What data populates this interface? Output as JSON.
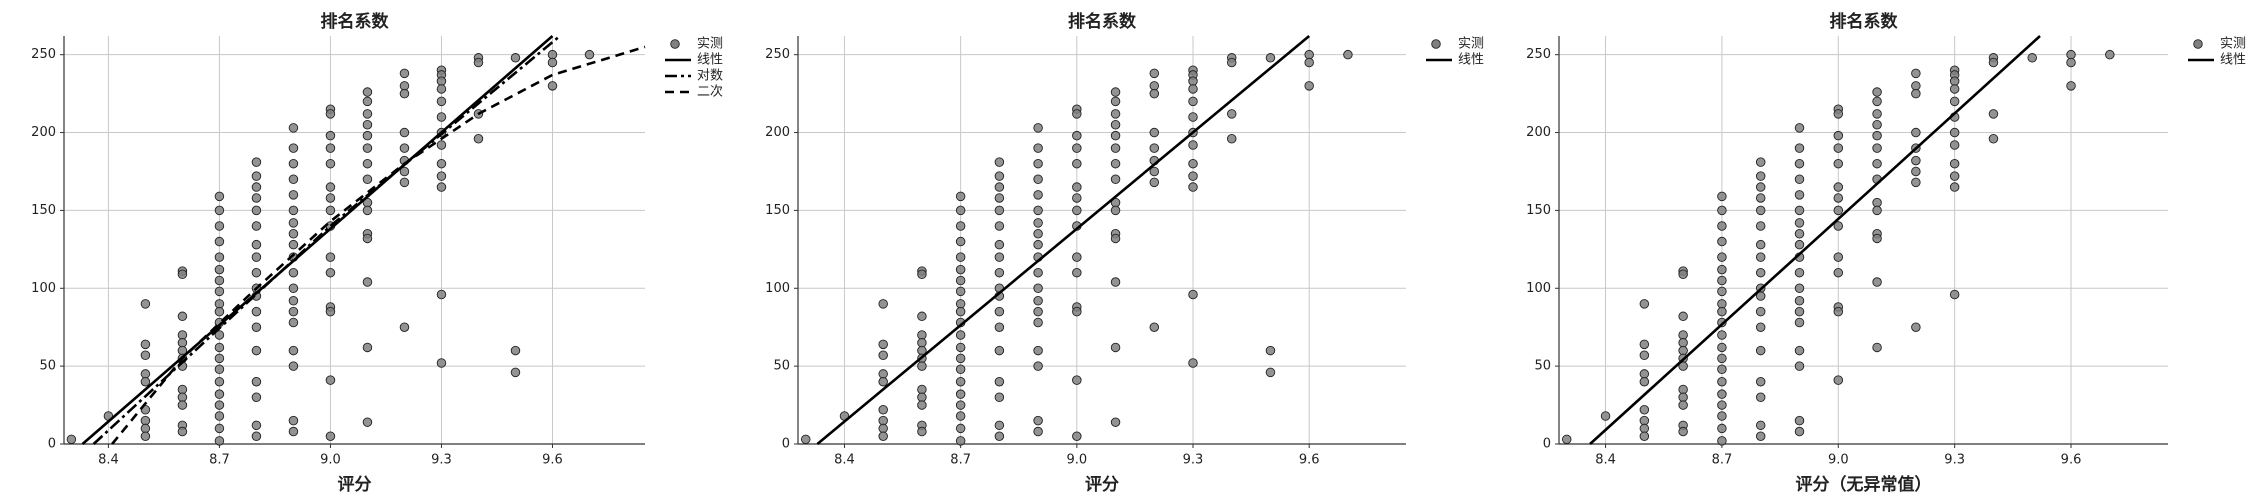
{
  "chart_data": [
    {
      "type": "scatter",
      "title": "排名系数",
      "x_label": "评分",
      "grid": true,
      "legend": "outside-right",
      "xlim": [
        8.28,
        9.85
      ],
      "xticks": [
        8.4,
        8.7,
        {
          "value": 9,
          "label": "9.0"
        },
        9.3,
        9.6
      ],
      "ylim": [
        0,
        262
      ],
      "yticks": [
        0,
        50,
        100,
        150,
        200,
        250
      ],
      "series": [
        {
          "name": "实测",
          "type": "scatter",
          "color": "#808080",
          "x": [
            8.3,
            8.4,
            8.5,
            8.5,
            8.5,
            8.5,
            8.5,
            8.5,
            8.5,
            8.5,
            8.5,
            8.6,
            8.6,
            8.6,
            8.6,
            8.6,
            8.6,
            8.6,
            8.6,
            8.6,
            8.6,
            8.6,
            8.6,
            8.6,
            8.7,
            8.7,
            8.7,
            8.7,
            8.7,
            8.7,
            8.7,
            8.7,
            8.7,
            8.7,
            8.7,
            8.7,
            8.7,
            8.7,
            8.7,
            8.7,
            8.7,
            8.7,
            8.7,
            8.7,
            8.7,
            8.8,
            8.8,
            8.8,
            8.8,
            8.8,
            8.8,
            8.8,
            8.8,
            8.8,
            8.8,
            8.8,
            8.8,
            8.8,
            8.8,
            8.8,
            8.8,
            8.8,
            8.8,
            8.9,
            8.9,
            8.9,
            8.9,
            8.9,
            8.9,
            8.9,
            8.9,
            8.9,
            8.9,
            8.9,
            8.9,
            8.9,
            8.9,
            8.9,
            8.9,
            8.9,
            8.9,
            8.9,
            9,
            9,
            9,
            9,
            9,
            9,
            9,
            9,
            9,
            9,
            9,
            9,
            9,
            9,
            9,
            9.1,
            9.1,
            9.1,
            9.1,
            9.1,
            9.1,
            9.1,
            9.1,
            9.1,
            9.1,
            9.1,
            9.1,
            9.1,
            9.1,
            9.1,
            9.2,
            9.2,
            9.2,
            9.2,
            9.2,
            9.2,
            9.2,
            9.2,
            9.2,
            9.3,
            9.3,
            9.3,
            9.3,
            9.3,
            9.3,
            9.3,
            9.3,
            9.3,
            9.3,
            9.3,
            9.3,
            9.3,
            9.4,
            9.4,
            9.4,
            9.4,
            9.5,
            9.5,
            9.5,
            9.6,
            9.6,
            9.6,
            9.7
          ],
          "values": [
            3,
            18,
            90,
            64,
            57,
            45,
            40,
            22,
            15,
            10,
            5,
            111,
            109,
            82,
            70,
            65,
            60,
            55,
            50,
            35,
            30,
            25,
            12,
            8,
            159,
            150,
            140,
            130,
            120,
            112,
            105,
            98,
            90,
            85,
            78,
            70,
            62,
            55,
            48,
            40,
            32,
            25,
            18,
            10,
            2,
            181,
            172,
            165,
            158,
            150,
            140,
            128,
            120,
            110,
            100,
            95,
            85,
            75,
            60,
            40,
            30,
            12,
            5,
            203,
            190,
            180,
            170,
            160,
            150,
            142,
            135,
            128,
            120,
            110,
            100,
            92,
            85,
            78,
            60,
            50,
            15,
            8,
            215,
            212,
            198,
            190,
            180,
            165,
            158,
            150,
            140,
            120,
            110,
            88,
            85,
            41,
            5,
            226,
            220,
            212,
            205,
            198,
            190,
            180,
            170,
            155,
            150,
            135,
            132,
            104,
            62,
            14,
            238,
            230,
            225,
            200,
            190,
            182,
            175,
            168,
            75,
            240,
            237,
            233,
            228,
            220,
            210,
            200,
            192,
            180,
            172,
            165,
            96,
            52,
            248,
            245,
            212,
            196,
            248,
            60,
            46,
            250,
            245,
            230,
            250
          ]
        },
        {
          "name": "线性",
          "type": "line",
          "style": "solid",
          "color": "#000000",
          "x": [
            8.33,
            9.6
          ],
          "values": [
            0,
            262
          ]
        },
        {
          "name": "对数",
          "type": "line",
          "style": "dashdot",
          "color": "#000000",
          "x": [
            8.36,
            9.0,
            9.62
          ],
          "values": [
            0,
            140,
            262
          ]
        },
        {
          "name": "二次",
          "type": "line",
          "style": "dashed",
          "color": "#000000",
          "x": [
            8.41,
            8.6,
            8.8,
            9.0,
            9.2,
            9.4,
            9.6,
            9.85
          ],
          "values": [
            0,
            55,
            100,
            143,
            180,
            212,
            237,
            255
          ]
        }
      ]
    },
    {
      "type": "scatter",
      "title": "排名系数",
      "x_label": "评分",
      "grid": true,
      "legend": "outside-right",
      "xlim": [
        8.28,
        9.85
      ],
      "xticks": [
        8.4,
        8.7,
        {
          "value": 9,
          "label": "9.0"
        },
        9.3,
        9.6
      ],
      "ylim": [
        0,
        262
      ],
      "yticks": [
        0,
        50,
        100,
        150,
        200,
        250
      ],
      "series": [
        {
          "name": "实测",
          "type": "scatter",
          "color": "#808080",
          "x": [
            8.3,
            8.4,
            8.5,
            8.5,
            8.5,
            8.5,
            8.5,
            8.5,
            8.5,
            8.5,
            8.5,
            8.6,
            8.6,
            8.6,
            8.6,
            8.6,
            8.6,
            8.6,
            8.6,
            8.6,
            8.6,
            8.6,
            8.6,
            8.6,
            8.7,
            8.7,
            8.7,
            8.7,
            8.7,
            8.7,
            8.7,
            8.7,
            8.7,
            8.7,
            8.7,
            8.7,
            8.7,
            8.7,
            8.7,
            8.7,
            8.7,
            8.7,
            8.7,
            8.7,
            8.7,
            8.8,
            8.8,
            8.8,
            8.8,
            8.8,
            8.8,
            8.8,
            8.8,
            8.8,
            8.8,
            8.8,
            8.8,
            8.8,
            8.8,
            8.8,
            8.8,
            8.8,
            8.8,
            8.9,
            8.9,
            8.9,
            8.9,
            8.9,
            8.9,
            8.9,
            8.9,
            8.9,
            8.9,
            8.9,
            8.9,
            8.9,
            8.9,
            8.9,
            8.9,
            8.9,
            8.9,
            8.9,
            9,
            9,
            9,
            9,
            9,
            9,
            9,
            9,
            9,
            9,
            9,
            9,
            9,
            9,
            9,
            9.1,
            9.1,
            9.1,
            9.1,
            9.1,
            9.1,
            9.1,
            9.1,
            9.1,
            9.1,
            9.1,
            9.1,
            9.1,
            9.1,
            9.1,
            9.2,
            9.2,
            9.2,
            9.2,
            9.2,
            9.2,
            9.2,
            9.2,
            9.2,
            9.3,
            9.3,
            9.3,
            9.3,
            9.3,
            9.3,
            9.3,
            9.3,
            9.3,
            9.3,
            9.3,
            9.3,
            9.3,
            9.4,
            9.4,
            9.4,
            9.4,
            9.5,
            9.5,
            9.5,
            9.6,
            9.6,
            9.6,
            9.7
          ],
          "values": [
            3,
            18,
            90,
            64,
            57,
            45,
            40,
            22,
            15,
            10,
            5,
            111,
            109,
            82,
            70,
            65,
            60,
            55,
            50,
            35,
            30,
            25,
            12,
            8,
            159,
            150,
            140,
            130,
            120,
            112,
            105,
            98,
            90,
            85,
            78,
            70,
            62,
            55,
            48,
            40,
            32,
            25,
            18,
            10,
            2,
            181,
            172,
            165,
            158,
            150,
            140,
            128,
            120,
            110,
            100,
            95,
            85,
            75,
            60,
            40,
            30,
            12,
            5,
            203,
            190,
            180,
            170,
            160,
            150,
            142,
            135,
            128,
            120,
            110,
            100,
            92,
            85,
            78,
            60,
            50,
            15,
            8,
            215,
            212,
            198,
            190,
            180,
            165,
            158,
            150,
            140,
            120,
            110,
            88,
            85,
            41,
            5,
            226,
            220,
            212,
            205,
            198,
            190,
            180,
            170,
            155,
            150,
            135,
            132,
            104,
            62,
            14,
            238,
            230,
            225,
            200,
            190,
            182,
            175,
            168,
            75,
            240,
            237,
            233,
            228,
            220,
            210,
            200,
            192,
            180,
            172,
            165,
            96,
            52,
            248,
            245,
            212,
            196,
            248,
            60,
            46,
            250,
            245,
            230,
            250
          ]
        },
        {
          "name": "线性",
          "type": "line",
          "style": "solid",
          "color": "#000000",
          "x": [
            8.33,
            9.6
          ],
          "values": [
            0,
            262
          ]
        }
      ]
    },
    {
      "type": "scatter",
      "title": "排名系数",
      "x_label": "评分（无异常值）",
      "grid": true,
      "legend": "outside-right",
      "xlim": [
        8.28,
        9.85
      ],
      "xticks": [
        8.4,
        8.7,
        {
          "value": 9,
          "label": "9.0"
        },
        9.3,
        9.6
      ],
      "ylim": [
        0,
        262
      ],
      "yticks": [
        0,
        50,
        100,
        150,
        200,
        250
      ],
      "series": [
        {
          "name": "实测",
          "type": "scatter",
          "color": "#808080",
          "x": [
            8.3,
            8.4,
            8.5,
            8.5,
            8.5,
            8.5,
            8.5,
            8.5,
            8.5,
            8.5,
            8.5,
            8.6,
            8.6,
            8.6,
            8.6,
            8.6,
            8.6,
            8.6,
            8.6,
            8.6,
            8.6,
            8.6,
            8.6,
            8.6,
            8.7,
            8.7,
            8.7,
            8.7,
            8.7,
            8.7,
            8.7,
            8.7,
            8.7,
            8.7,
            8.7,
            8.7,
            8.7,
            8.7,
            8.7,
            8.7,
            8.7,
            8.7,
            8.7,
            8.7,
            8.7,
            8.8,
            8.8,
            8.8,
            8.8,
            8.8,
            8.8,
            8.8,
            8.8,
            8.8,
            8.8,
            8.8,
            8.8,
            8.8,
            8.8,
            8.8,
            8.8,
            8.8,
            8.8,
            8.9,
            8.9,
            8.9,
            8.9,
            8.9,
            8.9,
            8.9,
            8.9,
            8.9,
            8.9,
            8.9,
            8.9,
            8.9,
            8.9,
            8.9,
            8.9,
            8.9,
            8.9,
            8.9,
            9,
            9,
            9,
            9,
            9,
            9,
            9,
            9,
            9,
            9,
            9,
            9,
            9,
            9,
            9.1,
            9.1,
            9.1,
            9.1,
            9.1,
            9.1,
            9.1,
            9.1,
            9.1,
            9.1,
            9.1,
            9.1,
            9.1,
            9.1,
            9.2,
            9.2,
            9.2,
            9.2,
            9.2,
            9.2,
            9.2,
            9.2,
            9.2,
            9.3,
            9.3,
            9.3,
            9.3,
            9.3,
            9.3,
            9.3,
            9.3,
            9.3,
            9.3,
            9.3,
            9.3,
            9.4,
            9.4,
            9.4,
            9.4,
            9.5,
            9.6,
            9.6,
            9.6,
            9.7
          ],
          "values": [
            3,
            18,
            90,
            64,
            57,
            45,
            40,
            22,
            15,
            10,
            5,
            111,
            109,
            82,
            70,
            65,
            60,
            55,
            50,
            35,
            30,
            25,
            12,
            8,
            159,
            150,
            140,
            130,
            120,
            112,
            105,
            98,
            90,
            85,
            78,
            70,
            62,
            55,
            48,
            40,
            32,
            25,
            18,
            10,
            2,
            181,
            172,
            165,
            158,
            150,
            140,
            128,
            120,
            110,
            100,
            95,
            85,
            75,
            60,
            40,
            30,
            12,
            5,
            203,
            190,
            180,
            170,
            160,
            150,
            142,
            135,
            128,
            120,
            110,
            100,
            92,
            85,
            78,
            60,
            50,
            15,
            8,
            215,
            212,
            198,
            190,
            180,
            165,
            158,
            150,
            140,
            120,
            110,
            88,
            85,
            41,
            226,
            220,
            212,
            205,
            198,
            190,
            180,
            170,
            155,
            150,
            135,
            132,
            104,
            62,
            238,
            230,
            225,
            200,
            190,
            182,
            175,
            168,
            75,
            240,
            237,
            233,
            228,
            220,
            210,
            200,
            192,
            180,
            172,
            165,
            96,
            248,
            245,
            212,
            196,
            248,
            250,
            245,
            230,
            250
          ]
        },
        {
          "name": "线性",
          "type": "line",
          "style": "solid",
          "color": "#000000",
          "x": [
            8.36,
            9.52
          ],
          "values": [
            0,
            262
          ]
        }
      ]
    }
  ]
}
